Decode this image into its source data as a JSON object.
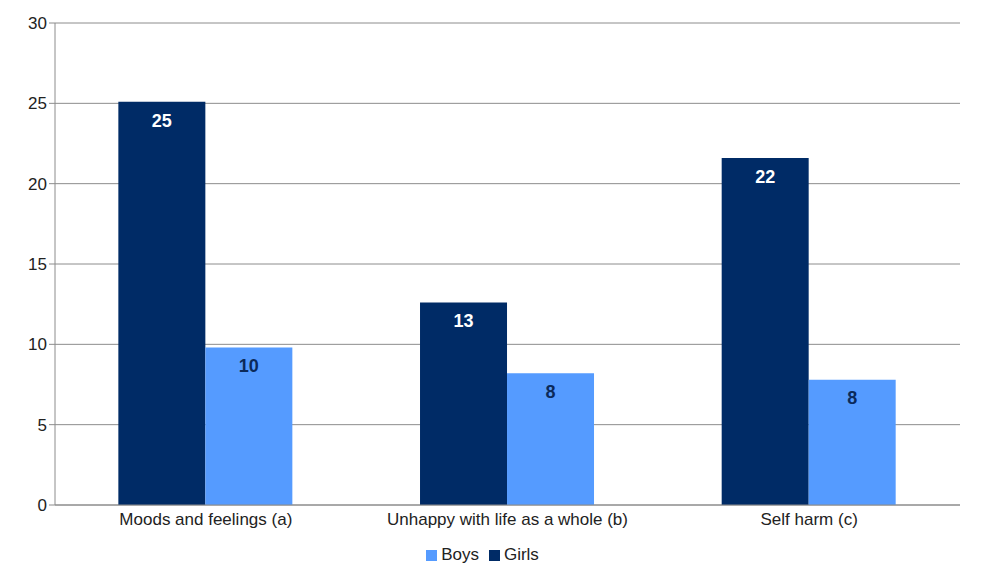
{
  "chart_data": {
    "type": "bar",
    "categories": [
      "Moods and feelings (a)",
      "Unhappy with life as a whole (b)",
      "Self harm (c)"
    ],
    "series": [
      {
        "name": "Girls",
        "color": "#002b66",
        "values": [
          25.1,
          12.6,
          21.6
        ],
        "value_labels": [
          "25",
          "13",
          "22"
        ]
      },
      {
        "name": "Boys",
        "color": "#559bff",
        "values": [
          9.8,
          8.2,
          7.8
        ],
        "value_labels": [
          "10",
          "8",
          "8"
        ]
      }
    ],
    "ylim": [
      0,
      30
    ],
    "yticks": [
      0,
      5,
      10,
      15,
      20,
      25,
      30
    ],
    "grid": true,
    "legend": "bottom",
    "data_labels": true
  }
}
